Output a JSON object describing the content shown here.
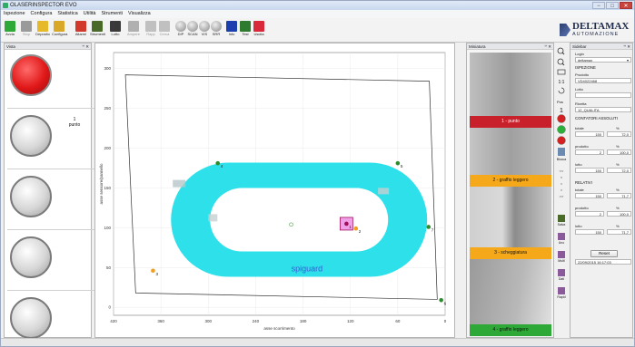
{
  "window": {
    "title": "OLASERINSPECTOR EVO",
    "min": "−",
    "max": "□",
    "close": "✕"
  },
  "menu": [
    "Ispezione",
    "Configura",
    "Statistica",
    "Utilità",
    "Strumenti",
    "Visualizza"
  ],
  "toolbar": [
    {
      "label": "Avvia",
      "icon": "play-icon",
      "color": "#2ea836",
      "enabled": true
    },
    {
      "label": "Stop",
      "icon": "stop-icon",
      "color": "#9a9a9a",
      "enabled": false
    },
    {
      "label": "Deposito",
      "icon": "folder-icon",
      "color": "#e6b92b",
      "enabled": true
    },
    {
      "label": "Configura",
      "icon": "configure-icon",
      "color": "#d9a829",
      "enabled": true
    },
    {
      "label": "Allarmi",
      "icon": "alarm-icon",
      "color": "#d13a2a",
      "enabled": true
    },
    {
      "label": "Strumenti",
      "icon": "tools-icon",
      "color": "#4a6a2a",
      "enabled": true
    },
    {
      "label": "Lotto",
      "icon": "lot-icon",
      "color": "#3a3a3a",
      "enabled": true
    },
    {
      "label": "Ampere",
      "icon": "ampere-icon",
      "color": "#b0b0b0",
      "enabled": false
    },
    {
      "label": "Rapp",
      "icon": "report-icon",
      "color": "#c0c0c0",
      "enabled": false
    },
    {
      "label": "Cerca",
      "icon": "search-icon",
      "color": "#c0c0c0",
      "enabled": false
    },
    {
      "label": "DIP",
      "icon": "dip-icon",
      "color": "#7a7a7a",
      "enabled": true
    },
    {
      "label": "SCAN",
      "icon": "scan-icon",
      "color": "#7a7a7a",
      "enabled": true
    },
    {
      "label": "VIS",
      "icon": "vis-icon",
      "color": "#7a7a7a",
      "enabled": true
    },
    {
      "label": "SRR",
      "icon": "srr-icon",
      "color": "#7a7a7a",
      "enabled": true
    },
    {
      "label": "Info",
      "icon": "info-icon",
      "color": "#1c3fb0",
      "enabled": true
    },
    {
      "label": "Test",
      "icon": "test-icon",
      "color": "#2e7a2e",
      "enabled": true
    },
    {
      "label": "Uscita",
      "icon": "exit-icon",
      "color": "#d8283a",
      "enabled": true
    }
  ],
  "logo": {
    "line1": "DELTAMAX",
    "line2": "AUTOMAZIONE"
  },
  "left_panel": {
    "title": "Vista",
    "indicators": [
      {
        "state": "red",
        "label_num": "1",
        "label_text": "punto"
      },
      {
        "state": "gray"
      },
      {
        "state": "gray"
      },
      {
        "state": "gray"
      },
      {
        "state": "gray"
      }
    ]
  },
  "chart_data": {
    "type": "scatter",
    "xlabel": "asse scorrimento",
    "ylabel": "asse sensore/pannello",
    "xlim": [
      -420,
      0
    ],
    "ylim": [
      -10,
      320
    ],
    "xticks": [
      -420,
      -360,
      -300,
      -240,
      -180,
      -120,
      -60,
      0
    ],
    "yticks": [
      300,
      250,
      200,
      150,
      100,
      50,
      0
    ],
    "xticklabels": [
      "420",
      "360",
      "300",
      "240",
      "180",
      "120",
      "60",
      "0"
    ],
    "points": [
      {
        "id": "1",
        "x": -125,
        "y": 105,
        "color": "#a0105a",
        "selected": true
      },
      {
        "id": "2",
        "x": -113,
        "y": 99,
        "color": "#f0a020"
      },
      {
        "id": "3",
        "x": -370,
        "y": 46,
        "color": "#f0a020"
      },
      {
        "id": "4",
        "x": -288,
        "y": 181,
        "color": "#2e8b2e"
      },
      {
        "id": "5",
        "x": -60,
        "y": 181,
        "color": "#2e8b2e"
      },
      {
        "id": "6",
        "x": -5,
        "y": 9,
        "color": "#2e8b2e"
      },
      {
        "id": "7",
        "x": -21,
        "y": 101,
        "color": "#2e8b2e"
      }
    ],
    "shape_text": "spiguard",
    "plate_color": "#2ee0ea"
  },
  "thumbs_panel": {
    "title": "Miniatura",
    "items": [
      {
        "label": "1 - punto",
        "color": "#c8212b",
        "text_color": "#ffffff"
      },
      {
        "label": "2 - graffio leggero",
        "color": "#f5a81a",
        "text_color": "#111111"
      },
      {
        "label": "3 - scheggiatura",
        "color": "#f5a81a",
        "text_color": "#111111"
      },
      {
        "label": "4 - graffio leggero",
        "color": "#2ea836",
        "text_color": "#111111"
      }
    ]
  },
  "side_tools": {
    "zoom_in": "+",
    "zoom_out": "−",
    "fit": "1:1",
    "pos_label": "Pos",
    "pos_value": "1",
    "status_btn": "Blocca",
    "nav": [
      "<<",
      "<",
      "=",
      ">",
      ">>"
    ],
    "saves": [
      "Salva",
      "Uno",
      "Multi",
      "Dati",
      "Rapid"
    ]
  },
  "right_panel": {
    "title": "Sidebar",
    "login_label": "Login",
    "login_value": "deltamax",
    "section_ispezione": "ISPEZIONE",
    "product_label": "Prodotto",
    "product_value": "VD4022468",
    "lot_label": "Lotto",
    "lot_value": "",
    "recipe_label": "Ricetta",
    "recipe_value": "12_QUALITA",
    "section_abs": "CONTATORI ASSOLUTI",
    "section_rel": "RELATIVI",
    "abs": [
      {
        "label": "totale",
        "value": "150",
        "pct": "72,0"
      },
      {
        "label": "prodotto",
        "value": "2",
        "pct": "100,0"
      },
      {
        "label": "lotto",
        "value": "150",
        "pct": "72,0"
      }
    ],
    "rel": [
      {
        "label": "totale",
        "value": "150",
        "pct": "71,7"
      },
      {
        "label": "prodotto",
        "value": "2",
        "pct": "100,0"
      },
      {
        "label": "lotto",
        "value": "150",
        "pct": "71,7"
      }
    ],
    "pct_symbol": "%",
    "reset_label": "Reset",
    "timestamp": "22/09/2015 16:17:03"
  }
}
